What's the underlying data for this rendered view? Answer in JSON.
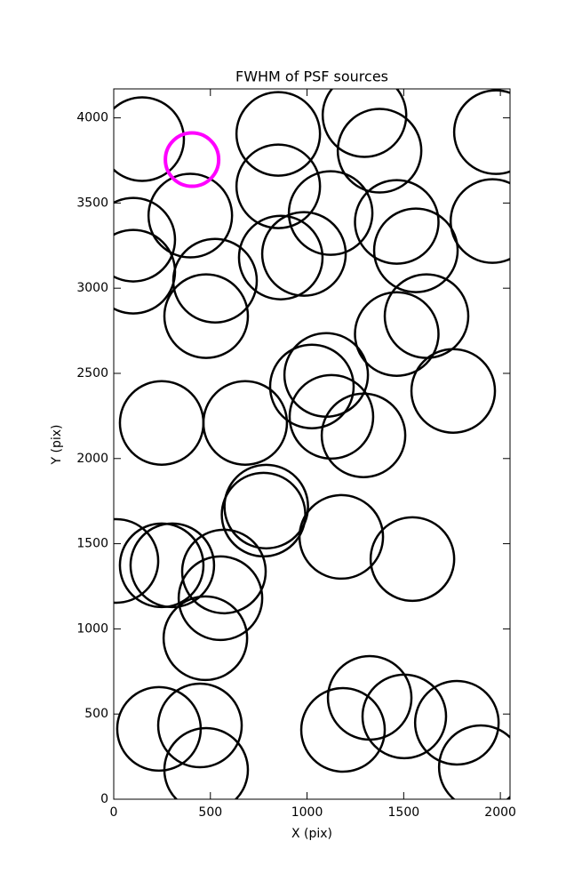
{
  "chart_data": {
    "type": "scatter",
    "title": "FWHM of PSF sources",
    "x_label": "X (pix)",
    "y_label": "Y (pix)",
    "xlim": [
      0,
      2050
    ],
    "ylim": [
      0,
      4170
    ],
    "xticks": [
      0,
      500,
      1000,
      1500,
      2000
    ],
    "yticks": [
      0,
      500,
      1000,
      1500,
      2000,
      2500,
      3000,
      3500,
      4000
    ],
    "grid": false,
    "series": [
      {
        "color": "#000000",
        "x": [
          147,
          851,
          1297,
          1375,
          1977,
          851,
          396,
          101,
          101,
          1122,
          1464,
          1959,
          1563,
          984,
          864,
          524,
          478,
          1618,
          1464,
          1099,
          1025,
          1756,
          1126,
          1292,
          248,
          680,
          789,
          775,
          1177,
          1545,
          14,
          248,
          303,
          570,
          552,
          474,
          1324,
          1503,
          1775,
          234,
          446,
          1186,
          1899,
          478
        ],
        "values": [
          3875,
          3906,
          4016,
          3807,
          3916,
          3598,
          3426,
          3285,
          3097,
          3441,
          3389,
          3394,
          3222,
          3201,
          3180,
          3044,
          2836,
          2836,
          2731,
          2491,
          2423,
          2397,
          2245,
          2136,
          2209,
          2209,
          1718,
          1671,
          1540,
          1410,
          1399,
          1373,
          1373,
          1337,
          1180,
          945,
          595,
          486,
          449,
          413,
          433,
          407,
          188,
          172
        ]
      },
      {
        "color": "#ff00ff",
        "x": [
          405
        ],
        "values": [
          3755
        ]
      }
    ]
  }
}
